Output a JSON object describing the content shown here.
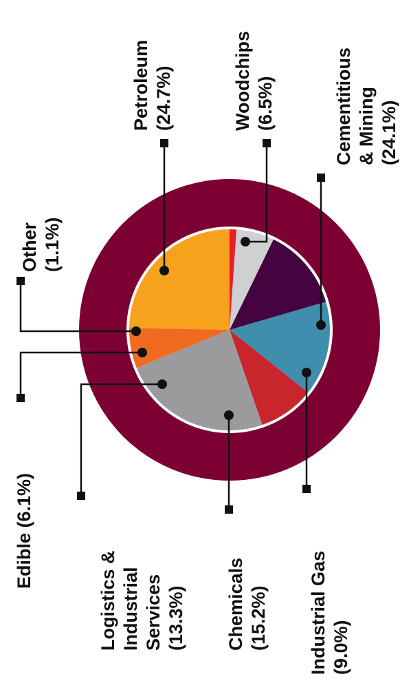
{
  "colors": {
    "ring": "#7d0033",
    "inner_border": "#ffffff",
    "leader": "#111111",
    "label_text": "#111111"
  },
  "chart_data": {
    "type": "pie",
    "title": "",
    "legend": "none",
    "orientation": "rotated-90-ccw",
    "slices": [
      {
        "name": "Petroleum",
        "value": 24.7,
        "label": [
          "Petroleum",
          "(24.7%)"
        ],
        "color": "#f7a21d"
      },
      {
        "name": "Woodchips",
        "value": 6.5,
        "label": [
          "Woodchips",
          "(6.5%)"
        ],
        "color": "#f06a22"
      },
      {
        "name": "Cementitious & Mining",
        "value": 24.1,
        "label": [
          "Cementitious",
          "& Mining",
          "(24.1%)"
        ],
        "color": "#9b9b9e"
      },
      {
        "name": "Industrial Gas",
        "value": 9.0,
        "label": [
          "Industrial Gas",
          "(9.0%)"
        ],
        "color": "#c9252c"
      },
      {
        "name": "Chemicals",
        "value": 15.2,
        "label": [
          "Chemicals",
          "(15.2%)"
        ],
        "color": "#3f8ead"
      },
      {
        "name": "Logistics & Industrial Services",
        "value": 13.3,
        "label": [
          "Logistics &",
          "Industrial",
          "Services",
          "(13.3%)"
        ],
        "color": "#44043f"
      },
      {
        "name": "Edible",
        "value": 6.1,
        "label": [
          "Edible (6.1%)"
        ],
        "color": "#cfd0d1"
      },
      {
        "name": "Other",
        "value": 1.1,
        "label": [
          "Other",
          "(1.1%)"
        ],
        "color": "#e8202a"
      }
    ]
  }
}
